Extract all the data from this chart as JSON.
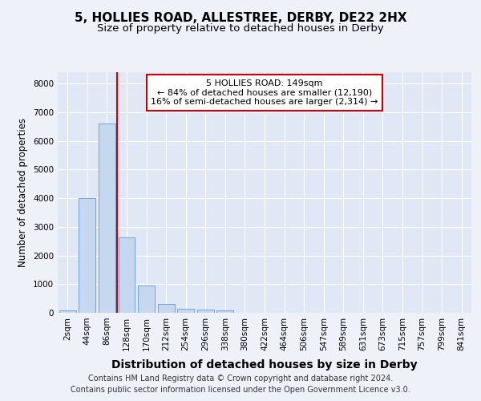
{
  "title1": "5, HOLLIES ROAD, ALLESTREE, DERBY, DE22 2HX",
  "title2": "Size of property relative to detached houses in Derby",
  "xlabel": "Distribution of detached houses by size in Derby",
  "ylabel": "Number of detached properties",
  "bar_categories": [
    "2sqm",
    "44sqm",
    "86sqm",
    "128sqm",
    "170sqm",
    "212sqm",
    "254sqm",
    "296sqm",
    "338sqm",
    "380sqm",
    "422sqm",
    "464sqm",
    "506sqm",
    "547sqm",
    "589sqm",
    "631sqm",
    "673sqm",
    "715sqm",
    "757sqm",
    "799sqm",
    "841sqm"
  ],
  "bar_values": [
    80,
    4000,
    6600,
    2620,
    960,
    320,
    130,
    110,
    90,
    0,
    0,
    0,
    0,
    0,
    0,
    0,
    0,
    0,
    0,
    0,
    0
  ],
  "bar_color": "#c5d8f0",
  "bar_edge_color": "#6699cc",
  "vline_color": "#cc0000",
  "vline_pos": 2.5,
  "annotation_text": "5 HOLLIES ROAD: 149sqm\n← 84% of detached houses are smaller (12,190)\n16% of semi-detached houses are larger (2,314) →",
  "annotation_box_color": "#ffffff",
  "annotation_box_edge_color": "#cc0000",
  "ylim": [
    0,
    8400
  ],
  "yticks": [
    0,
    1000,
    2000,
    3000,
    4000,
    5000,
    6000,
    7000,
    8000
  ],
  "background_color": "#eef1f8",
  "plot_bg_color": "#e0e8f5",
  "grid_color": "#ffffff",
  "footer_text": "Contains HM Land Registry data © Crown copyright and database right 2024.\nContains public sector information licensed under the Open Government Licence v3.0.",
  "title1_fontsize": 11,
  "title2_fontsize": 9.5,
  "xlabel_fontsize": 10,
  "ylabel_fontsize": 8.5,
  "tick_fontsize": 7.5,
  "annot_fontsize": 8,
  "footer_fontsize": 7
}
